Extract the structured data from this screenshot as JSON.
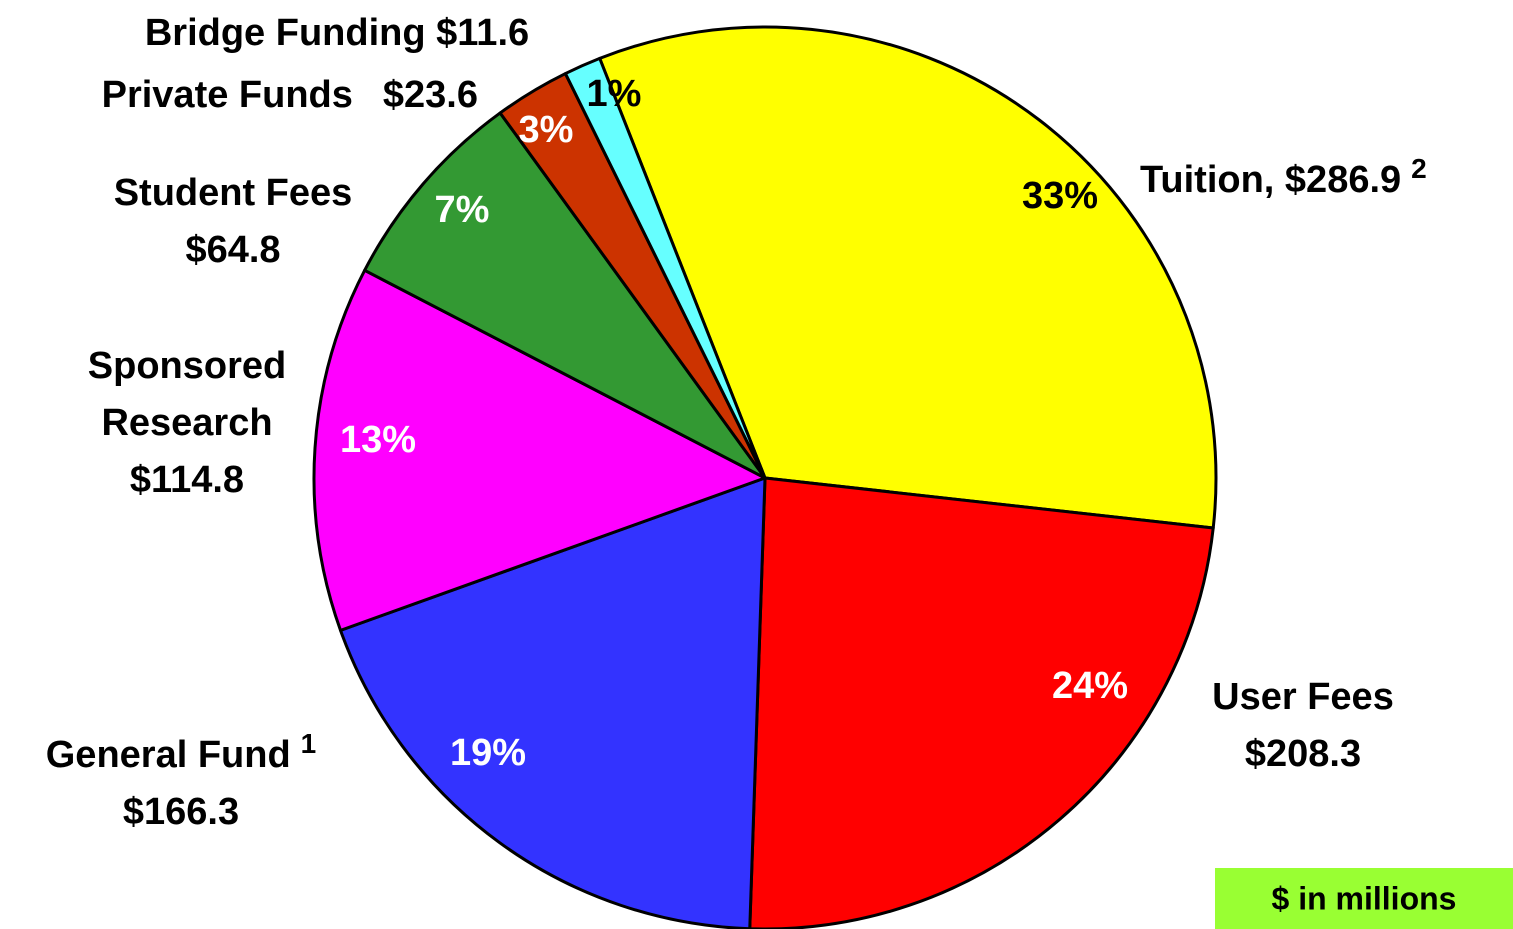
{
  "chart_data": {
    "type": "pie",
    "categories": [
      "Tuition,",
      "User Fees",
      "General Fund",
      "Sponsored Research",
      "Student Fees",
      "Private Funds",
      "Bridge Funding"
    ],
    "values": [
      286.9,
      208.3,
      166.3,
      114.8,
      64.8,
      23.6,
      11.6
    ],
    "value_labels": [
      "$286.9",
      "$208.3",
      "$166.3",
      "$114.8",
      "$64.8",
      "$23.6",
      "$11.6"
    ],
    "percent_labels": [
      "33%",
      "24%",
      "19%",
      "13%",
      "7%",
      "3%",
      "1%"
    ],
    "footnotes": [
      "2",
      null,
      "1",
      null,
      null,
      null,
      null
    ],
    "colors": [
      "#ffff00",
      "#ff0000",
      "#3333ff",
      "#ff00ff",
      "#339933",
      "#cc3300",
      "#66ffff"
    ],
    "note": "$ in millions"
  }
}
